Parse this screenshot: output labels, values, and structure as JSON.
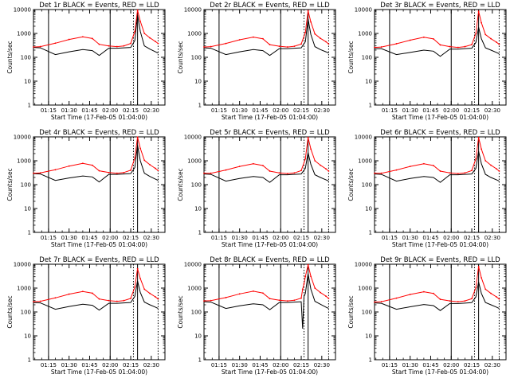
{
  "chart_data": [
    {
      "type": "line",
      "title": "Det 1r BLACK = Events, RED = LLD",
      "xlabel": "Start Time (17-Feb-05 01:04:00)",
      "ylabel": "Counts/sec",
      "yscale": "log",
      "ylim": [
        1,
        10000
      ],
      "xticks": [
        "01:15",
        "01:30",
        "01:45",
        "02:00",
        "02:15",
        "02:30"
      ],
      "yticks": [
        "1",
        "10",
        "100",
        "1000",
        "10000"
      ],
      "x": [
        "01:04",
        "01:09",
        "01:20",
        "01:30",
        "01:40",
        "01:47",
        "01:52",
        "01:59",
        "02:05",
        "02:10",
        "02:15",
        "02:18",
        "02:20",
        "02:22",
        "02:25",
        "02:29",
        "02:33",
        "02:35"
      ],
      "series": [
        {
          "color": "#000000",
          "values": [
            260,
            250,
            130,
            170,
            210,
            190,
            120,
            240,
            240,
            250,
            260,
            500,
            6000,
            1200,
            300,
            220,
            170,
            150
          ]
        },
        {
          "color": "#ff0000",
          "values": [
            270,
            280,
            390,
            560,
            720,
            610,
            350,
            300,
            280,
            300,
            380,
            1200,
            9500,
            3200,
            1000,
            650,
            460,
            380
          ]
        }
      ],
      "solid_lines": [
        "01:15",
        "02:00",
        "02:20"
      ],
      "dotted_lines": [
        "02:17",
        "02:35"
      ]
    },
    {
      "type": "line",
      "title": "Det 2r BLACK = Events, RED = LLD",
      "xlabel": "Start Time (17-Feb-05 01:04:00)",
      "ylabel": "Counts/sec",
      "yscale": "log",
      "ylim": [
        1,
        10000
      ],
      "xticks": [
        "01:15",
        "01:30",
        "01:45",
        "02:00",
        "02:15",
        "02:30"
      ],
      "yticks": [
        "1",
        "10",
        "100",
        "1000",
        "10000"
      ],
      "x": [
        "01:04",
        "01:09",
        "01:20",
        "01:30",
        "01:40",
        "01:47",
        "01:52",
        "01:59",
        "02:05",
        "02:10",
        "02:15",
        "02:18",
        "02:20",
        "02:22",
        "02:25",
        "02:29",
        "02:33",
        "02:35"
      ],
      "series": [
        {
          "color": "#000000",
          "values": [
            250,
            240,
            130,
            170,
            210,
            190,
            120,
            230,
            230,
            240,
            250,
            450,
            4000,
            900,
            280,
            210,
            170,
            150
          ]
        },
        {
          "color": "#ff0000",
          "values": [
            270,
            280,
            380,
            540,
            700,
            600,
            340,
            290,
            270,
            290,
            360,
            1100,
            9000,
            3000,
            950,
            620,
            450,
            360
          ]
        }
      ],
      "solid_lines": [
        "01:15",
        "02:00",
        "02:20"
      ],
      "dotted_lines": [
        "02:17",
        "02:35"
      ]
    },
    {
      "type": "line",
      "title": "Det 3r BLACK = Events, RED = LLD",
      "xlabel": "Start Time (17-Feb-05 01:04:00)",
      "ylabel": "Counts/sec",
      "yscale": "log",
      "ylim": [
        1,
        10000
      ],
      "xticks": [
        "01:15",
        "01:30",
        "01:45",
        "02:00",
        "02:15",
        "02:30"
      ],
      "yticks": [
        "1",
        "10",
        "100",
        "1000",
        "10000"
      ],
      "x": [
        "01:04",
        "01:09",
        "01:20",
        "01:30",
        "01:40",
        "01:47",
        "01:52",
        "01:59",
        "02:05",
        "02:10",
        "02:15",
        "02:18",
        "02:20",
        "02:22",
        "02:25",
        "02:29",
        "02:33",
        "02:35"
      ],
      "series": [
        {
          "color": "#000000",
          "values": [
            230,
            230,
            130,
            160,
            200,
            180,
            110,
            220,
            220,
            230,
            240,
            420,
            1800,
            600,
            250,
            200,
            160,
            140
          ]
        },
        {
          "color": "#ff0000",
          "values": [
            260,
            270,
            370,
            520,
            690,
            590,
            330,
            280,
            260,
            280,
            340,
            1000,
            8500,
            2800,
            900,
            600,
            430,
            350
          ]
        }
      ],
      "solid_lines": [
        "01:15",
        "02:00",
        "02:20"
      ],
      "dotted_lines": [
        "02:17",
        "02:35"
      ]
    },
    {
      "type": "line",
      "title": "Det 4r BLACK = Events, RED = LLD",
      "xlabel": "Start Time (17-Feb-05 01:04:00)",
      "ylabel": "Counts/sec",
      "yscale": "log",
      "ylim": [
        1,
        10000
      ],
      "xticks": [
        "01:15",
        "01:30",
        "01:45",
        "02:00",
        "02:15",
        "02:30"
      ],
      "yticks": [
        "1",
        "10",
        "100",
        "1000",
        "10000"
      ],
      "x": [
        "01:04",
        "01:09",
        "01:20",
        "01:30",
        "01:40",
        "01:47",
        "01:52",
        "01:59",
        "02:05",
        "02:10",
        "02:15",
        "02:18",
        "02:20",
        "02:22",
        "02:25",
        "02:29",
        "02:33",
        "02:35"
      ],
      "series": [
        {
          "color": "#000000",
          "values": [
            290,
            280,
            150,
            190,
            230,
            210,
            130,
            270,
            270,
            280,
            290,
            520,
            4500,
            1000,
            300,
            220,
            170,
            150
          ]
        },
        {
          "color": "#ff0000",
          "values": [
            300,
            310,
            420,
            600,
            780,
            650,
            380,
            320,
            300,
            320,
            400,
            1300,
            9800,
            3300,
            1050,
            680,
            480,
            390
          ]
        }
      ],
      "solid_lines": [
        "01:15",
        "02:00",
        "02:20"
      ],
      "dotted_lines": [
        "02:17",
        "02:35"
      ]
    },
    {
      "type": "line",
      "title": "Det 5r BLACK = Events, RED = LLD",
      "xlabel": "Start Time (17-Feb-05 01:04:00)",
      "ylabel": "Counts/sec",
      "yscale": "log",
      "ylim": [
        1,
        10000
      ],
      "xticks": [
        "01:15",
        "01:30",
        "01:45",
        "02:00",
        "02:15",
        "02:30"
      ],
      "yticks": [
        "1",
        "10",
        "100",
        "1000",
        "10000"
      ],
      "x": [
        "01:04",
        "01:09",
        "01:20",
        "01:30",
        "01:40",
        "01:47",
        "01:52",
        "01:59",
        "02:05",
        "02:10",
        "02:15",
        "02:18",
        "02:20",
        "02:22",
        "02:25",
        "02:29",
        "02:33",
        "02:35"
      ],
      "series": [
        {
          "color": "#000000",
          "values": [
            280,
            270,
            140,
            180,
            220,
            200,
            125,
            260,
            260,
            270,
            280,
            480,
            2200,
            700,
            260,
            200,
            160,
            140
          ]
        },
        {
          "color": "#ff0000",
          "values": [
            300,
            300,
            410,
            580,
            750,
            630,
            370,
            310,
            290,
            310,
            390,
            1200,
            9500,
            3100,
            1000,
            650,
            460,
            370
          ]
        }
      ],
      "solid_lines": [
        "01:15",
        "02:00",
        "02:20"
      ],
      "dotted_lines": [
        "02:17",
        "02:35"
      ]
    },
    {
      "type": "line",
      "title": "Det 6r BLACK = Events, RED = LLD",
      "xlabel": "Start Time (17-Feb-05 01:04:00)",
      "ylabel": "Counts/sec",
      "yscale": "log",
      "ylim": [
        1,
        10000
      ],
      "xticks": [
        "01:15",
        "01:30",
        "01:45",
        "02:00",
        "02:15",
        "02:30"
      ],
      "yticks": [
        "1",
        "10",
        "100",
        "1000",
        "10000"
      ],
      "x": [
        "01:04",
        "01:09",
        "01:20",
        "01:30",
        "01:40",
        "01:47",
        "01:52",
        "01:59",
        "02:05",
        "02:10",
        "02:15",
        "02:18",
        "02:20",
        "02:22",
        "02:25",
        "02:29",
        "02:33",
        "02:35"
      ],
      "series": [
        {
          "color": "#000000",
          "values": [
            280,
            270,
            140,
            180,
            220,
            200,
            125,
            260,
            260,
            270,
            280,
            480,
            2500,
            750,
            270,
            200,
            160,
            140
          ]
        },
        {
          "color": "#ff0000",
          "values": [
            300,
            300,
            410,
            580,
            750,
            630,
            370,
            310,
            290,
            310,
            390,
            1200,
            9400,
            3100,
            1000,
            650,
            460,
            370
          ]
        }
      ],
      "solid_lines": [
        "01:15",
        "02:00",
        "02:20"
      ],
      "dotted_lines": [
        "02:17",
        "02:35"
      ]
    },
    {
      "type": "line",
      "title": "Det 7r BLACK = Events, RED = LLD",
      "xlabel": "Start Time (17-Feb-05 01:04:00)",
      "ylabel": "Counts/sec",
      "yscale": "log",
      "ylim": [
        1,
        10000
      ],
      "xticks": [
        "01:15",
        "01:30",
        "01:45",
        "02:00",
        "02:15",
        "02:30"
      ],
      "yticks": [
        "1",
        "10",
        "100",
        "1000",
        "10000"
      ],
      "x": [
        "01:04",
        "01:09",
        "01:20",
        "01:30",
        "01:40",
        "01:47",
        "01:52",
        "01:59",
        "02:05",
        "02:10",
        "02:15",
        "02:18",
        "02:20",
        "02:22",
        "02:25",
        "02:29",
        "02:33",
        "02:35"
      ],
      "series": [
        {
          "color": "#000000",
          "values": [
            250,
            240,
            130,
            170,
            210,
            190,
            120,
            230,
            230,
            240,
            250,
            450,
            2000,
            650,
            260,
            200,
            160,
            140
          ]
        },
        {
          "color": "#ff0000",
          "values": [
            270,
            280,
            390,
            560,
            720,
            610,
            350,
            300,
            280,
            300,
            370,
            1100,
            6500,
            2500,
            900,
            600,
            430,
            350
          ]
        }
      ],
      "solid_lines": [
        "01:15",
        "02:00",
        "02:20"
      ],
      "dotted_lines": [
        "02:17",
        "02:35"
      ]
    },
    {
      "type": "line",
      "title": "Det 8r BLACK = Events, RED = LLD",
      "xlabel": "Start Time (17-Feb-05 01:04:00)",
      "ylabel": "Counts/sec",
      "yscale": "log",
      "ylim": [
        1,
        10000
      ],
      "xticks": [
        "01:15",
        "01:30",
        "01:45",
        "02:00",
        "02:15",
        "02:30"
      ],
      "yticks": [
        "1",
        "10",
        "100",
        "1000",
        "10000"
      ],
      "x": [
        "01:04",
        "01:09",
        "01:20",
        "01:30",
        "01:40",
        "01:47",
        "01:52",
        "01:59",
        "02:05",
        "02:10",
        "02:15",
        "02:16",
        "02:17",
        "02:18",
        "02:20",
        "02:22",
        "02:25",
        "02:29",
        "02:33",
        "02:35"
      ],
      "series": [
        {
          "color": "#000000",
          "values": [
            270,
            260,
            140,
            180,
            220,
            200,
            125,
            250,
            250,
            260,
            270,
            20,
            450,
            600,
            4000,
            900,
            280,
            210,
            160,
            140
          ]
        },
        {
          "color": "#ff0000",
          "values": [
            290,
            300,
            400,
            570,
            740,
            620,
            360,
            310,
            290,
            310,
            380,
            900,
            1500,
            3000,
            9500,
            3100,
            1000,
            650,
            460,
            370
          ]
        }
      ],
      "solid_lines": [
        "01:15",
        "02:00",
        "02:20"
      ],
      "dotted_lines": [
        "02:17",
        "02:35"
      ]
    },
    {
      "type": "line",
      "title": "Det 9r BLACK = Events, RED = LLD",
      "xlabel": "Start Time (17-Feb-05 01:04:00)",
      "ylabel": "Counts/sec",
      "yscale": "log",
      "ylim": [
        1,
        10000
      ],
      "xticks": [
        "01:15",
        "01:30",
        "01:45",
        "02:00",
        "02:15",
        "02:30"
      ],
      "yticks": [
        "1",
        "10",
        "100",
        "1000",
        "10000"
      ],
      "x": [
        "01:04",
        "01:09",
        "01:20",
        "01:30",
        "01:40",
        "01:47",
        "01:52",
        "01:59",
        "02:05",
        "02:10",
        "02:15",
        "02:18",
        "02:20",
        "02:22",
        "02:25",
        "02:29",
        "02:33",
        "02:35"
      ],
      "series": [
        {
          "color": "#000000",
          "values": [
            240,
            230,
            130,
            165,
            205,
            185,
            115,
            225,
            225,
            235,
            245,
            430,
            1800,
            600,
            250,
            200,
            160,
            140
          ]
        },
        {
          "color": "#ff0000",
          "values": [
            260,
            270,
            380,
            540,
            700,
            600,
            340,
            290,
            270,
            290,
            360,
            1050,
            8000,
            2700,
            900,
            600,
            430,
            350
          ]
        }
      ],
      "solid_lines": [
        "01:15",
        "02:00",
        "02:20"
      ],
      "dotted_lines": [
        "02:17",
        "02:35"
      ]
    }
  ]
}
